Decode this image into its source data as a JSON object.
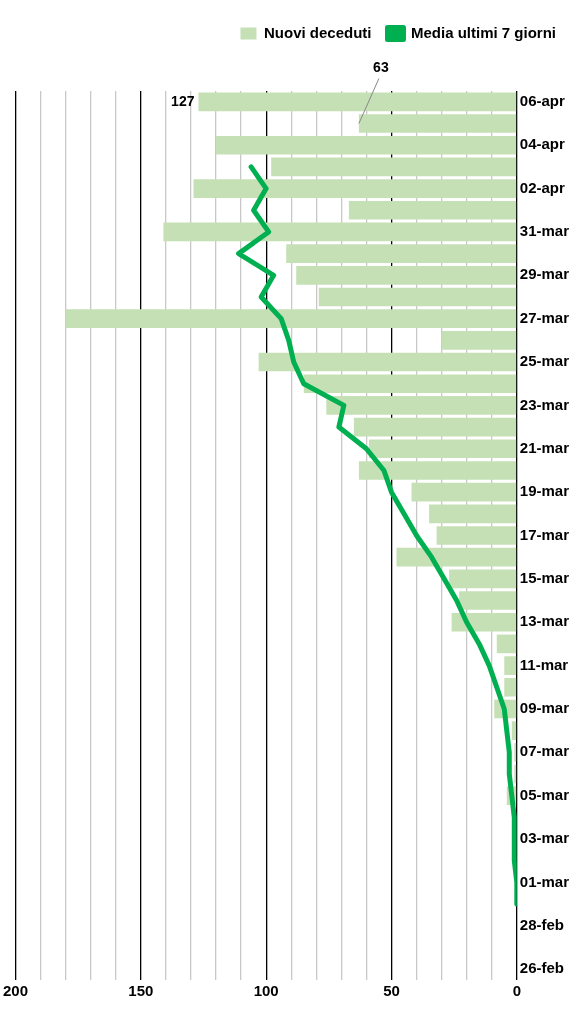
{
  "chart_data": {
    "type": "bar",
    "orientation": "horizontal",
    "categories": [
      "06-apr",
      null,
      "04-apr",
      null,
      "02-apr",
      null,
      "31-mar",
      null,
      "29-mar",
      null,
      "27-mar",
      null,
      "25-mar",
      null,
      "23-mar",
      null,
      "21-mar",
      null,
      "19-mar",
      null,
      "17-mar",
      null,
      "15-mar",
      null,
      "13-mar",
      null,
      "11-mar",
      null,
      "09-mar",
      null,
      "07-mar",
      null,
      "05-mar",
      null,
      "03-mar",
      null,
      "01-mar",
      null,
      "28-feb",
      null,
      "26-feb"
    ],
    "series": [
      {
        "name": "Nuovi deceduti",
        "color": "#c5e0b4",
        "value_labels": [
          "127",
          "63",
          null,
          null,
          null,
          null,
          null,
          null,
          null,
          null,
          null,
          null,
          null,
          null,
          null,
          null,
          null,
          null,
          null,
          null,
          null,
          null,
          null,
          null,
          null,
          null,
          null,
          null,
          null,
          null,
          null,
          null,
          null,
          null,
          null,
          null,
          null,
          null,
          null,
          null,
          null
        ],
        "values": [
          127,
          63,
          120,
          98,
          129,
          67,
          141,
          92,
          88,
          79,
          180,
          30,
          103,
          85,
          76,
          65,
          59,
          63,
          42,
          35,
          32,
          48,
          27,
          23,
          26,
          8,
          5,
          5,
          9,
          2,
          1,
          1,
          4,
          0,
          0,
          0,
          0,
          0,
          0,
          0,
          0
        ]
      },
      {
        "name": "Media ultimi 7 giorni",
        "type": "line",
        "color": "#00b050",
        "values": [
          null,
          null,
          null,
          106,
          100,
          105,
          99,
          111,
          97,
          102,
          94,
          91,
          89,
          85,
          69,
          71,
          60,
          53,
          50,
          45,
          40,
          34,
          29,
          24,
          20,
          15,
          11,
          8,
          5,
          4,
          3,
          3,
          2,
          1,
          1,
          1,
          0,
          0,
          null,
          null,
          null
        ]
      }
    ],
    "xlim": [
      200,
      0
    ],
    "xticks": [
      200,
      {
        "value": 190,
        "label": null
      },
      {
        "value": 180,
        "label": null
      },
      {
        "value": 170,
        "label": null
      },
      {
        "value": 160,
        "label": null
      },
      150,
      {
        "value": 140,
        "label": null
      },
      {
        "value": 130,
        "label": null
      },
      {
        "value": 120,
        "label": null
      },
      {
        "value": 110,
        "label": null
      },
      100,
      {
        "value": 90,
        "label": null
      },
      {
        "value": 80,
        "label": null
      },
      {
        "value": 70,
        "label": null
      },
      {
        "value": 60,
        "label": null
      },
      50,
      {
        "value": 40,
        "label": null
      },
      {
        "value": 30,
        "label": null
      },
      {
        "value": 20,
        "label": null
      },
      {
        "value": 10,
        "label": null
      },
      0
    ],
    "grid": "x",
    "legend": "top",
    "marker": "none",
    "line_style": "solid"
  }
}
